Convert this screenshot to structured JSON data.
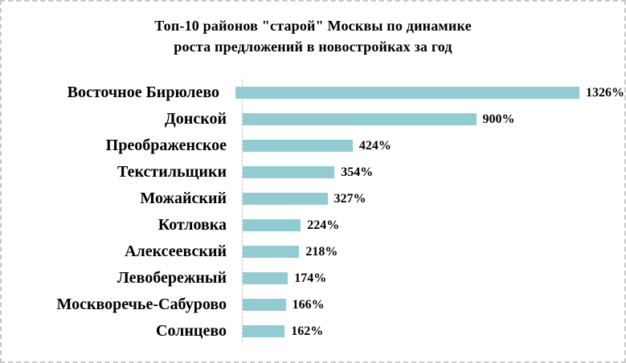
{
  "title": {
    "lines": [
      "Топ-10 районов \"старой\" Москвы по динамике",
      "роста предложений в новостройках за год"
    ]
  },
  "colors": {
    "bar": "#93cbd2",
    "axis": "#c6c6c6",
    "border": "#c9c9c9",
    "background": "#ffffff",
    "text": "#000000"
  },
  "chart_data": {
    "type": "bar",
    "orientation": "horizontal",
    "title": "Топ-10 районов \"старой\" Москвы по динамике роста предложений в новостройках за год",
    "categories": [
      "Восточное Бирюлево",
      "Донской",
      "Преображенское",
      "Текстильщики",
      "Можайский",
      "Котловка",
      "Алексеевский",
      "Левобережный",
      "Москворечье-Сабурово",
      "Солнцево"
    ],
    "values": [
      1326,
      900,
      424,
      354,
      327,
      224,
      218,
      174,
      166,
      162
    ],
    "data_labels": [
      "1326%",
      "900%",
      "424%",
      "354%",
      "327%",
      "224%",
      "218%",
      "174%",
      "166%",
      "162%"
    ],
    "unit": "%",
    "xlabel": "",
    "ylabel": "",
    "xlim": [
      0,
      1400
    ],
    "legend": "none",
    "grid": "off"
  }
}
